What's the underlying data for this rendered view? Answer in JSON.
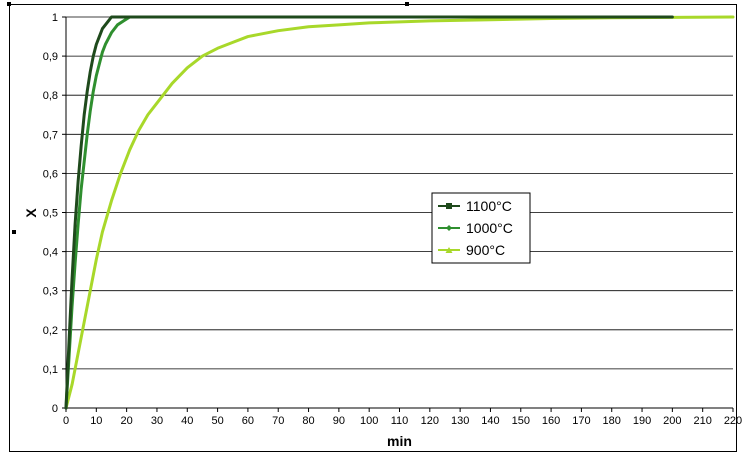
{
  "chart_data": {
    "type": "line",
    "xlabel": "min",
    "ylabel": "X",
    "xlim": [
      0,
      220
    ],
    "ylim": [
      0,
      1
    ],
    "x_ticks": [
      "0",
      "10",
      "20",
      "30",
      "40",
      "50",
      "60",
      "70",
      "80",
      "90",
      "100",
      "110",
      "120",
      "130",
      "140",
      "150",
      "160",
      "170",
      "180",
      "190",
      "200",
      "210",
      "220"
    ],
    "y_ticks": [
      "0",
      "0,1",
      "0,2",
      "0,3",
      "0,4",
      "0,5",
      "0,6",
      "0,7",
      "0,8",
      "0,9",
      "1"
    ],
    "grid": "horizontal",
    "legend_position": "center-right",
    "series": [
      {
        "name": "1100°C",
        "color": "#1f4a1c",
        "marker": "square",
        "x_end": 200,
        "points": [
          [
            0,
            0
          ],
          [
            1,
            0.17
          ],
          [
            2,
            0.33
          ],
          [
            3,
            0.47
          ],
          [
            4,
            0.58
          ],
          [
            5,
            0.67
          ],
          [
            6,
            0.75
          ],
          [
            7,
            0.81
          ],
          [
            8,
            0.86
          ],
          [
            9,
            0.9
          ],
          [
            10,
            0.93
          ],
          [
            11,
            0.95
          ],
          [
            12,
            0.97
          ],
          [
            13,
            0.98
          ],
          [
            14,
            0.99
          ],
          [
            15,
            1.0
          ],
          [
            200,
            1.0
          ]
        ]
      },
      {
        "name": "1000°C",
        "color": "#2f8f2f",
        "marker": "diamond",
        "x_end": 120,
        "points": [
          [
            0,
            0
          ],
          [
            1,
            0.13
          ],
          [
            2,
            0.26
          ],
          [
            3,
            0.37
          ],
          [
            4,
            0.47
          ],
          [
            5,
            0.56
          ],
          [
            6,
            0.63
          ],
          [
            7,
            0.7
          ],
          [
            8,
            0.76
          ],
          [
            9,
            0.81
          ],
          [
            10,
            0.85
          ],
          [
            11,
            0.88
          ],
          [
            12,
            0.91
          ],
          [
            13,
            0.93
          ],
          [
            15,
            0.96
          ],
          [
            17,
            0.98
          ],
          [
            19,
            0.99
          ],
          [
            21,
            1.0
          ],
          [
            120,
            1.0
          ]
        ]
      },
      {
        "name": "900°C",
        "color": "#a8d82a",
        "marker": "triangle",
        "x_end": 220,
        "points": [
          [
            0,
            0
          ],
          [
            2,
            0.06
          ],
          [
            4,
            0.14
          ],
          [
            6,
            0.22
          ],
          [
            8,
            0.3
          ],
          [
            10,
            0.38
          ],
          [
            12,
            0.45
          ],
          [
            15,
            0.53
          ],
          [
            18,
            0.6
          ],
          [
            21,
            0.66
          ],
          [
            24,
            0.71
          ],
          [
            27,
            0.75
          ],
          [
            30,
            0.78
          ],
          [
            35,
            0.83
          ],
          [
            40,
            0.87
          ],
          [
            45,
            0.9
          ],
          [
            50,
            0.92
          ],
          [
            55,
            0.935
          ],
          [
            60,
            0.95
          ],
          [
            70,
            0.965
          ],
          [
            80,
            0.975
          ],
          [
            90,
            0.98
          ],
          [
            100,
            0.985
          ],
          [
            120,
            0.99
          ],
          [
            140,
            0.993
          ],
          [
            160,
            0.996
          ],
          [
            180,
            0.998
          ],
          [
            200,
            0.999
          ],
          [
            220,
            1.0
          ]
        ]
      }
    ]
  }
}
